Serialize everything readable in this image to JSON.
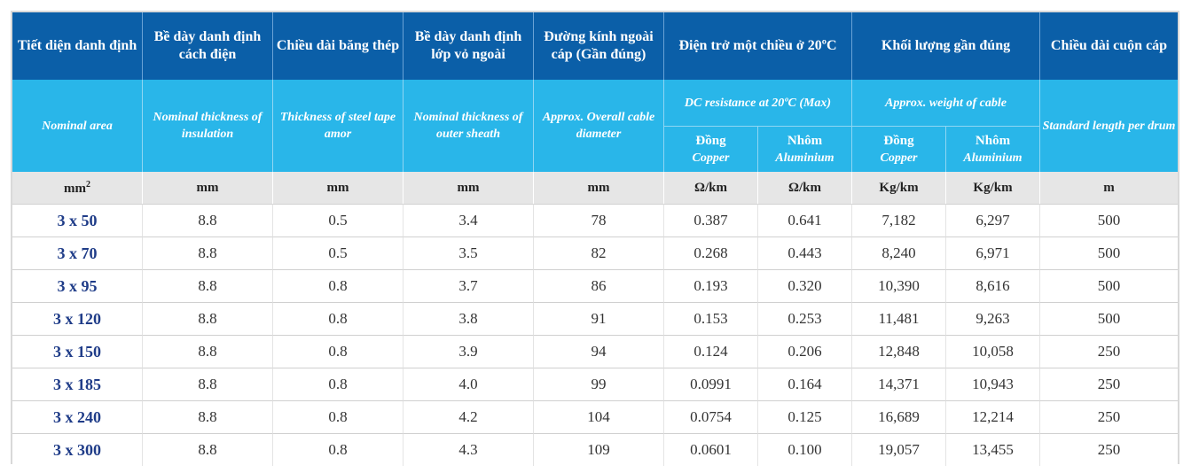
{
  "headers": {
    "nominal_area_vn": "Tiết diện danh định",
    "nominal_area_en": "Nominal area",
    "insulation_vn": "Bề dày danh định cách điện",
    "insulation_en": "Nominal thickness of insulation",
    "steel_tape_vn": "Chiều dài băng thép",
    "steel_tape_en": "Thickness of steel tape amor",
    "outer_sheath_vn": "Bề dày danh định lớp vỏ ngoài",
    "outer_sheath_en": "Nominal thickness of outer sheath",
    "diameter_vn": "Đường kính ngoài cáp (Gần đúng)",
    "diameter_en": "Approx. Overall cable diameter",
    "resistance_vn": "Điện trở một chiều ở 20ºC",
    "resistance_en": "DC resistance at 20ºC (Max)",
    "weight_vn": "Khối lượng gần đúng",
    "weight_en": "Approx. weight of cable",
    "length_vn": "Chiều dài cuộn cáp",
    "length_en": "Standard length per drum",
    "copper_vn": "Đồng",
    "copper_en": "Copper",
    "aluminium_vn": "Nhôm",
    "aluminium_en": "Aluminium"
  },
  "units": {
    "area": "mm",
    "area_sup": "2",
    "insulation": "mm",
    "steel_tape": "mm",
    "outer_sheath": "mm",
    "diameter": "mm",
    "res_copper": "Ω/km",
    "res_aluminium": "Ω/km",
    "wt_copper": "Kg/km",
    "wt_aluminium": "Kg/km",
    "length": "m"
  },
  "rows": [
    {
      "area": "3 x 50",
      "insulation": "8.8",
      "steel": "0.5",
      "sheath": "3.4",
      "diameter": "78",
      "res_cu": "0.387",
      "res_al": "0.641",
      "wt_cu": "7,182",
      "wt_al": "6,297",
      "length": "500"
    },
    {
      "area": "3 x 70",
      "insulation": "8.8",
      "steel": "0.5",
      "sheath": "3.5",
      "diameter": "82",
      "res_cu": "0.268",
      "res_al": "0.443",
      "wt_cu": "8,240",
      "wt_al": "6,971",
      "length": "500"
    },
    {
      "area": "3 x 95",
      "insulation": "8.8",
      "steel": "0.8",
      "sheath": "3.7",
      "diameter": "86",
      "res_cu": "0.193",
      "res_al": "0.320",
      "wt_cu": "10,390",
      "wt_al": "8,616",
      "length": "500"
    },
    {
      "area": "3 x 120",
      "insulation": "8.8",
      "steel": "0.8",
      "sheath": "3.8",
      "diameter": "91",
      "res_cu": "0.153",
      "res_al": "0.253",
      "wt_cu": "11,481",
      "wt_al": "9,263",
      "length": "500"
    },
    {
      "area": "3 x 150",
      "insulation": "8.8",
      "steel": "0.8",
      "sheath": "3.9",
      "diameter": "94",
      "res_cu": "0.124",
      "res_al": "0.206",
      "wt_cu": "12,848",
      "wt_al": "10,058",
      "length": "250"
    },
    {
      "area": "3 x 185",
      "insulation": "8.8",
      "steel": "0.8",
      "sheath": "4.0",
      "diameter": "99",
      "res_cu": "0.0991",
      "res_al": "0.164",
      "wt_cu": "14,371",
      "wt_al": "10,943",
      "length": "250"
    },
    {
      "area": "3 x 240",
      "insulation": "8.8",
      "steel": "0.8",
      "sheath": "4.2",
      "diameter": "104",
      "res_cu": "0.0754",
      "res_al": "0.125",
      "wt_cu": "16,689",
      "wt_al": "12,214",
      "length": "250"
    },
    {
      "area": "3 x 300",
      "insulation": "8.8",
      "steel": "0.8",
      "sheath": "4.3",
      "diameter": "109",
      "res_cu": "0.0601",
      "res_al": "0.100",
      "wt_cu": "19,057",
      "wt_al": "13,455",
      "length": "250"
    }
  ],
  "colors": {
    "header_dark": "#0b5fa8",
    "header_light": "#29b6e9",
    "unit_row": "#e6e6e6",
    "area_text": "#1f3c88"
  }
}
